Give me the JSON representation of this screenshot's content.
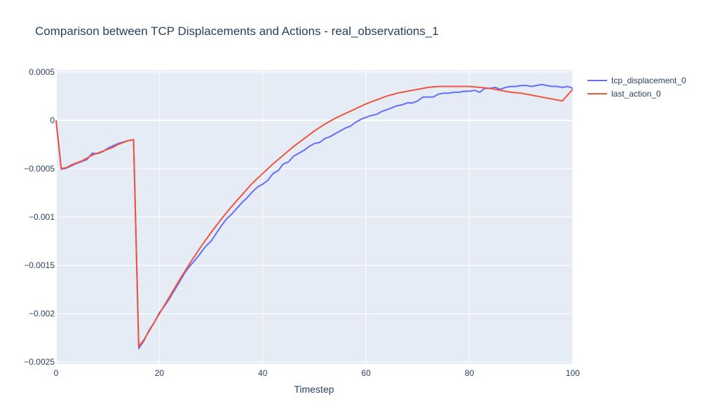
{
  "chart_data": {
    "type": "line",
    "title": "Comparison between TCP Displacements and Actions - real_observations_1",
    "xlabel": "Timestep",
    "ylabel": "",
    "xlim": [
      0,
      100
    ],
    "ylim": [
      -0.00252,
      0.00052
    ],
    "grid": true,
    "legend_position": "top-right",
    "x_ticks": [
      0,
      20,
      40,
      60,
      80,
      100
    ],
    "x_tick_labels": [
      "0",
      "20",
      "40",
      "60",
      "80",
      "100"
    ],
    "y_ticks": [
      0.0005,
      0,
      -0.0005,
      -0.001,
      -0.0015,
      -0.002,
      -0.0025
    ],
    "y_tick_labels": [
      "0.0005",
      "0",
      "−0.0005",
      "−0.001",
      "−0.0015",
      "−0.002",
      "−0.0025"
    ],
    "series": [
      {
        "name": "tcp_displacement_0",
        "color": "#636efa",
        "x": [
          0,
          1,
          2,
          3,
          4,
          5,
          6,
          7,
          8,
          9,
          10,
          11,
          12,
          13,
          14,
          15,
          16,
          17,
          18,
          19,
          20,
          21,
          22,
          23,
          24,
          25,
          26,
          27,
          28,
          29,
          30,
          31,
          32,
          33,
          34,
          35,
          36,
          37,
          38,
          39,
          40,
          41,
          42,
          43,
          44,
          45,
          46,
          47,
          48,
          49,
          50,
          51,
          52,
          53,
          54,
          55,
          56,
          57,
          58,
          59,
          60,
          61,
          62,
          63,
          64,
          65,
          66,
          67,
          68,
          69,
          70,
          71,
          72,
          73,
          74,
          75,
          76,
          77,
          78,
          79,
          80,
          81,
          82,
          83,
          84,
          85,
          86,
          87,
          88,
          89,
          90,
          91,
          92,
          93,
          94,
          95,
          96,
          97,
          98,
          99,
          100
        ],
        "y": [
          0,
          -0.000505,
          -0.000495,
          -0.00047,
          -0.000445,
          -0.000425,
          -0.000405,
          -0.00034,
          -0.000345,
          -0.000325,
          -0.00029,
          -0.000265,
          -0.00024,
          -0.000225,
          -0.00021,
          -0.0002,
          -0.00236,
          -0.00228,
          -0.00217,
          -0.00209,
          -0.00199,
          -0.00192,
          -0.00184,
          -0.00175,
          -0.00166,
          -0.00157,
          -0.0015,
          -0.00144,
          -0.00137,
          -0.0013,
          -0.00125,
          -0.00117,
          -0.00109,
          -0.00102,
          -0.00097,
          -0.00091,
          -0.00085,
          -0.0008,
          -0.00074,
          -0.00069,
          -0.00066,
          -0.00062,
          -0.00055,
          -0.00052,
          -0.00045,
          -0.00043,
          -0.00037,
          -0.00034,
          -0.00031,
          -0.00027,
          -0.00024,
          -0.00023,
          -0.00019,
          -0.00017,
          -0.00014,
          -0.00011,
          -8e-05,
          -6e-05,
          -2e-05,
          1e-05,
          3e-05,
          5e-05,
          6e-05,
          9e-05,
          0.00011,
          0.00013,
          0.00015,
          0.00016,
          0.00018,
          0.00018,
          0.0002,
          0.00024,
          0.00024,
          0.00024,
          0.00027,
          0.00028,
          0.00028,
          0.00029,
          0.00029,
          0.0003,
          0.0003,
          0.00031,
          0.00029,
          0.00033,
          0.00033,
          0.00034,
          0.00032,
          0.00034,
          0.00035,
          0.00035,
          0.00036,
          0.00036,
          0.00035,
          0.00036,
          0.00037,
          0.00036,
          0.00035,
          0.00035,
          0.00034,
          0.00035,
          0.00033
        ]
      },
      {
        "name": "last_action_0",
        "color": "#ef553b",
        "x": [
          0,
          1,
          2,
          3,
          4,
          5,
          6,
          7,
          8,
          9,
          10,
          11,
          12,
          13,
          14,
          15,
          16,
          17,
          18,
          19,
          20,
          22,
          24,
          26,
          28,
          30,
          32,
          34,
          36,
          38,
          40,
          42,
          44,
          46,
          48,
          50,
          52,
          54,
          56,
          58,
          60,
          62,
          64,
          66,
          68,
          70,
          72,
          74,
          76,
          78,
          80,
          82,
          84,
          86,
          88,
          90,
          92,
          94,
          96,
          98,
          100
        ],
        "y": [
          0,
          -0.0005,
          -0.00049,
          -0.00046,
          -0.00044,
          -0.00042,
          -0.00039,
          -0.00036,
          -0.00034,
          -0.00032,
          -0.0003,
          -0.00028,
          -0.00025,
          -0.00023,
          -0.00021,
          -0.0002,
          -0.00234,
          -0.00227,
          -0.00218,
          -0.00209,
          -0.002,
          -0.00182,
          -0.00164,
          -0.00147,
          -0.00131,
          -0.00116,
          -0.00102,
          -0.00089,
          -0.00077,
          -0.00065,
          -0.00055,
          -0.00045,
          -0.00036,
          -0.00027,
          -0.00019,
          -0.00011,
          -4e-05,
          2e-05,
          7e-05,
          0.00012,
          0.00017,
          0.00021,
          0.00025,
          0.00028,
          0.0003,
          0.00032,
          0.00034,
          0.00035,
          0.00035,
          0.00035,
          0.00035,
          0.00034,
          0.00033,
          0.00031,
          0.00029,
          0.00028,
          0.00026,
          0.00024,
          0.00022,
          0.0002,
          0.00032
        ]
      }
    ]
  }
}
